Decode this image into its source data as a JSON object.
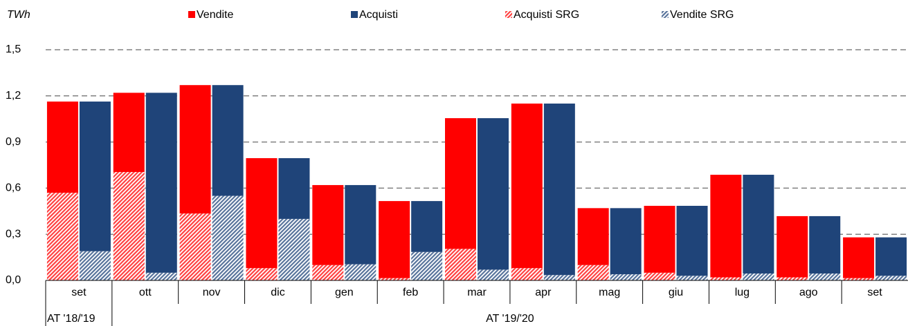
{
  "chart_data": {
    "type": "bar",
    "y_label": "TWh",
    "categories": [
      "set",
      "ott",
      "nov",
      "dic",
      "gen",
      "feb",
      "mar",
      "apr",
      "mag",
      "giu",
      "lug",
      "ago",
      "set"
    ],
    "groups": [
      "AT '18/'19",
      "AT '19/'20"
    ],
    "series": [
      {
        "name": "Vendite",
        "color": "#ff0000",
        "values": [
          0.593,
          0.515,
          0.835,
          0.715,
          0.52,
          0.501,
          0.85,
          1.07,
          0.37,
          0.435,
          0.667,
          0.398,
          0.265
        ]
      },
      {
        "name": "Acquisti",
        "color": "#1f4479",
        "values": [
          0.973,
          1.17,
          0.72,
          0.395,
          0.515,
          0.331,
          0.985,
          1.115,
          0.43,
          0.455,
          0.642,
          0.373,
          0.25
        ]
      },
      {
        "name": "Acquisti SRG",
        "color": "#ff0000",
        "pattern": "hatch",
        "values": [
          0.57,
          0.705,
          0.435,
          0.08,
          0.1,
          0.015,
          0.205,
          0.08,
          0.1,
          0.05,
          0.02,
          0.02,
          0.015
        ]
      },
      {
        "name": "Vendite SRG",
        "color": "#1f4479",
        "pattern": "hatch",
        "values": [
          0.19,
          0.05,
          0.55,
          0.4,
          0.105,
          0.185,
          0.07,
          0.035,
          0.04,
          0.03,
          0.045,
          0.045,
          0.03
        ]
      }
    ],
    "ylim": [
      0,
      1.5
    ],
    "yticks": [
      {
        "value": 0,
        "label": "0,0"
      },
      {
        "value": 0.3,
        "label": "0,3"
      },
      {
        "value": 0.6,
        "label": "0,6"
      },
      {
        "value": 0.9,
        "label": "0,9"
      },
      {
        "value": 1.2,
        "label": "1,2"
      },
      {
        "value": 1.5,
        "label": "1,5"
      }
    ],
    "grid": true
  }
}
